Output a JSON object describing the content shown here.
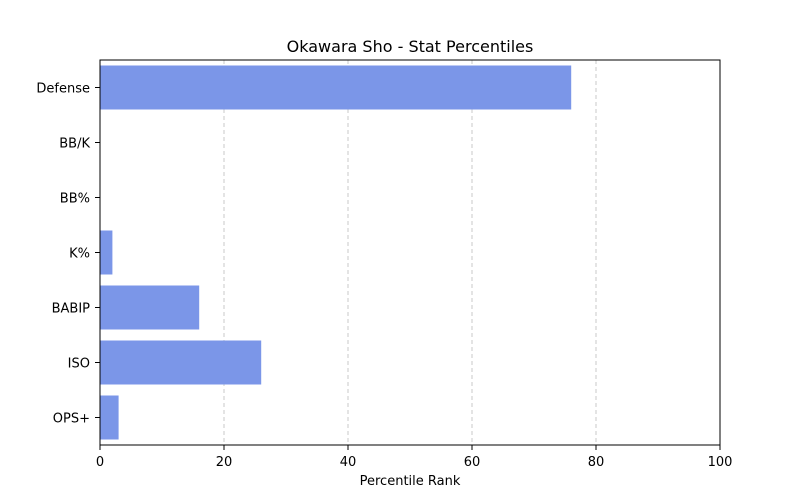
{
  "chart_data": {
    "type": "bar",
    "orientation": "horizontal",
    "title": "Okawara Sho - Stat Percentiles",
    "xlabel": "Percentile Rank",
    "ylabel": "",
    "xlim": [
      0,
      100
    ],
    "xticks": [
      0,
      20,
      40,
      60,
      80,
      100
    ],
    "grid": "x-dashed",
    "categories": [
      "Defense",
      "BB/K",
      "BB%",
      "K%",
      "BABIP",
      "ISO",
      "OPS+"
    ],
    "values": [
      76,
      0,
      0,
      2,
      16,
      26,
      3
    ],
    "bar_color": "#7b96e8",
    "grid_color": "#c8c8c8"
  }
}
